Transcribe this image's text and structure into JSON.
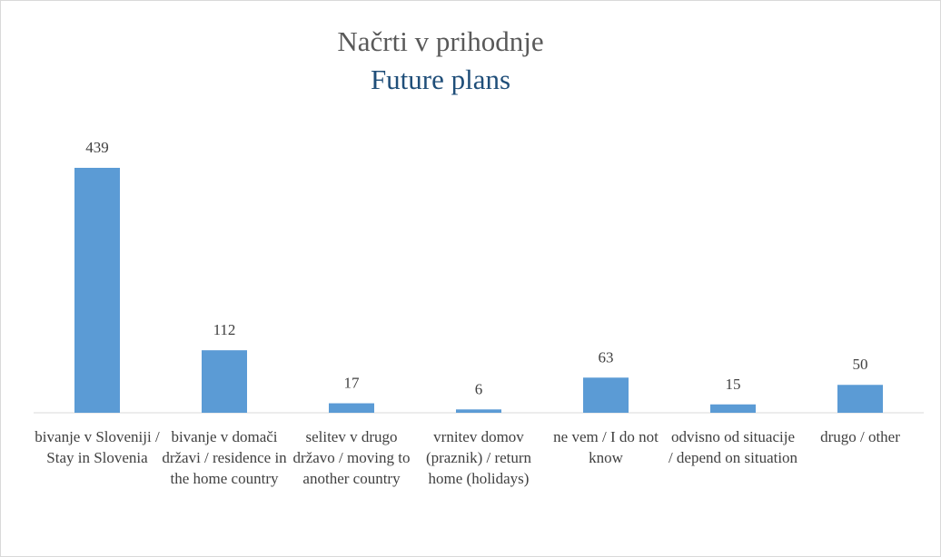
{
  "chart_data": {
    "type": "bar",
    "title": "Načrti v prihodnje",
    "subtitle": "Future plans",
    "categories": [
      "bivanje v Sloveniji / Stay in Slovenia",
      "bivanje v domači državi / residence in the home country",
      "selitev v drugo državo / moving to another country",
      "vrnitev domov (praznik) / return home (holidays)",
      "ne vem / I do not know",
      "odvisno od situacije / depend on situation",
      "drugo / other"
    ],
    "values": [
      439,
      112,
      17,
      6,
      63,
      15,
      50
    ],
    "color": "#5b9bd5"
  }
}
